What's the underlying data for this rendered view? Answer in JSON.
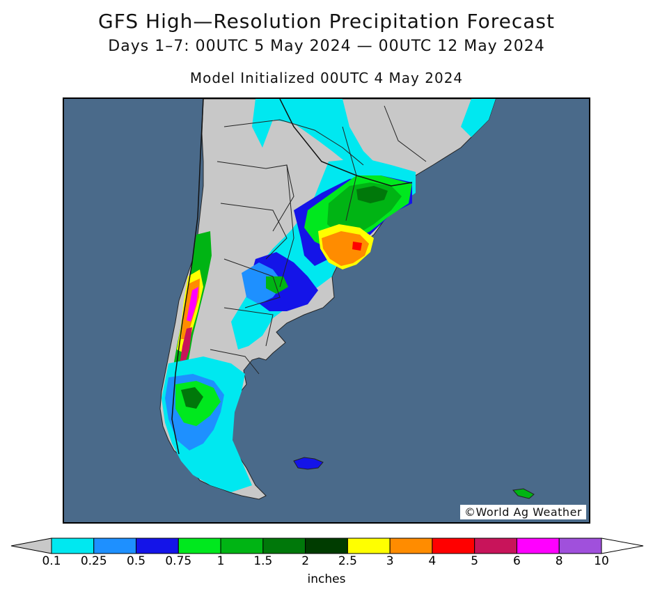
{
  "title": "GFS High—Resolution Precipitation Forecast",
  "subtitle": "Days 1–7: 00UTC 5 May 2024 — 00UTC 12 May 2024",
  "init_label": "Model Initialized 00UTC 4 May 2024",
  "credit": "©World Ag Weather",
  "colors": {
    "ocean": "#4a6a8a",
    "land": "#c8c8c8",
    "borders": "#222222"
  },
  "legend": {
    "units": "inches",
    "below_min_color": "#c8c8c8",
    "above_max_color": "#ffffff",
    "ticks": [
      "0.1",
      "0.25",
      "0.5",
      "0.75",
      "1",
      "1.5",
      "2",
      "2.5",
      "3",
      "4",
      "5",
      "6",
      "8",
      "10"
    ],
    "bins": [
      {
        "from": "0.1",
        "to": "0.25",
        "color": "#00e8f0"
      },
      {
        "from": "0.25",
        "to": "0.5",
        "color": "#1e90ff"
      },
      {
        "from": "0.5",
        "to": "0.75",
        "color": "#1414e8"
      },
      {
        "from": "0.75",
        "to": "1",
        "color": "#00e81e"
      },
      {
        "from": "1",
        "to": "1.5",
        "color": "#00b414"
      },
      {
        "from": "1.5",
        "to": "2",
        "color": "#00780a"
      },
      {
        "from": "2",
        "to": "2.5",
        "color": "#003c00"
      },
      {
        "from": "2.5",
        "to": "3",
        "color": "#ffff00"
      },
      {
        "from": "3",
        "to": "4",
        "color": "#ff8c00"
      },
      {
        "from": "4",
        "to": "5",
        "color": "#ff0000"
      },
      {
        "from": "5",
        "to": "6",
        "color": "#c8145a"
      },
      {
        "from": "6",
        "to": "8",
        "color": "#ff00ff"
      },
      {
        "from": "8",
        "to": "10",
        "color": "#a050dc"
      }
    ]
  }
}
